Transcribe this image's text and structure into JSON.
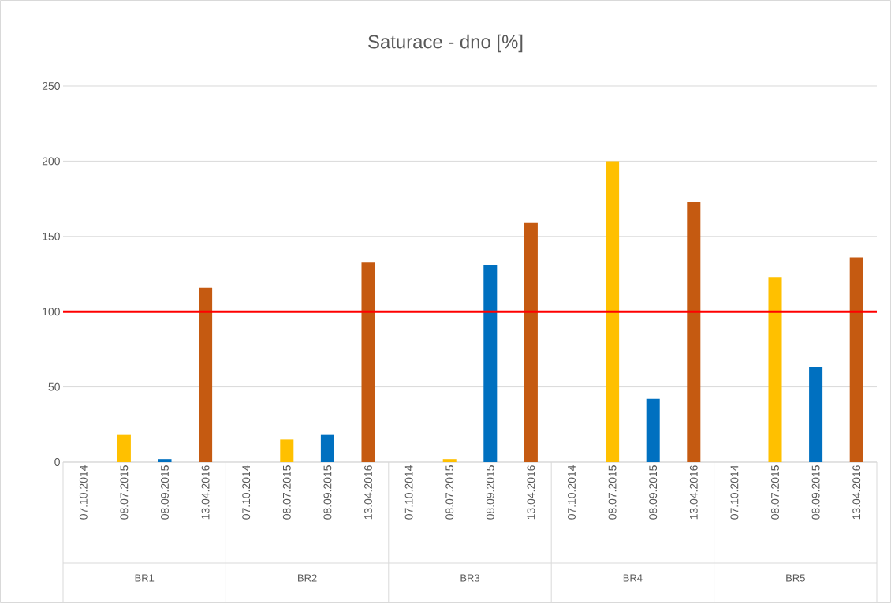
{
  "chart_data": {
    "type": "bar",
    "title": "Saturace - dno [%]",
    "categories": [
      "07.10.2014",
      "08.07.2015",
      "08.09.2015",
      "13.04.2016",
      "07.10.2014",
      "08.07.2015",
      "08.09.2015",
      "13.04.2016",
      "07.10.2014",
      "08.07.2015",
      "08.09.2015",
      "13.04.2016",
      "07.10.2014",
      "08.07.2015",
      "08.09.2015",
      "13.04.2016",
      "07.10.2014",
      "08.07.2015",
      "08.09.2015",
      "13.04.2016"
    ],
    "values": [
      null,
      18,
      2,
      116,
      null,
      15,
      18,
      133,
      null,
      2,
      131,
      159,
      null,
      200,
      42,
      173,
      null,
      123,
      63,
      136
    ],
    "colors": [
      "#ed7d31",
      "#ffc000",
      "#0070c0",
      "#c55a11",
      "#ed7d31",
      "#ffc000",
      "#0070c0",
      "#c55a11",
      "#ed7d31",
      "#ffc000",
      "#0070c0",
      "#c55a11",
      "#ed7d31",
      "#ffc000",
      "#0070c0",
      "#c55a11",
      "#ed7d31",
      "#ffc000",
      "#0070c0",
      "#c55a11"
    ],
    "ylim": [
      0,
      250
    ],
    "yticks": [
      0,
      50,
      100,
      150,
      200,
      250
    ],
    "grid": "y",
    "ref_lines": [
      {
        "axis": "y",
        "value": 100,
        "color": "#ff0000"
      }
    ],
    "annotations": [
      "BR1",
      "BR2",
      "BR3",
      "BR4",
      "BR5"
    ]
  }
}
